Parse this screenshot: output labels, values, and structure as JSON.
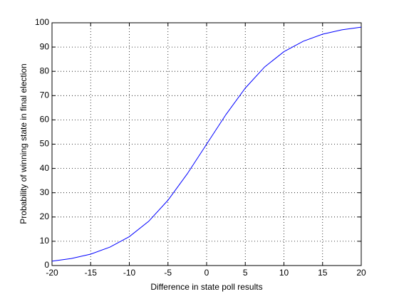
{
  "chart_data": {
    "type": "line",
    "xlabel": "Difference in state poll results",
    "ylabel": "Probability of winning state in final election",
    "x": [
      -20,
      -17.5,
      -15,
      -12.5,
      -10,
      -7.5,
      -5,
      -2.5,
      0,
      2.5,
      5,
      7.5,
      10,
      12.5,
      15,
      17.5,
      20
    ],
    "values": [
      1.8,
      2.9,
      4.7,
      7.6,
      11.9,
      18.2,
      26.9,
      37.8,
      50,
      62.2,
      73.1,
      81.8,
      88.1,
      92.4,
      95.3,
      97.1,
      98.2
    ],
    "color": "#0000ff",
    "xlim": [
      -20,
      20
    ],
    "xticks": [
      -20,
      -15,
      -10,
      -5,
      0,
      5,
      10,
      15,
      20
    ],
    "ylim": [
      0,
      100
    ],
    "yticks": [
      0,
      10,
      20,
      30,
      40,
      50,
      60,
      70,
      80,
      90,
      100
    ],
    "grid": true
  }
}
